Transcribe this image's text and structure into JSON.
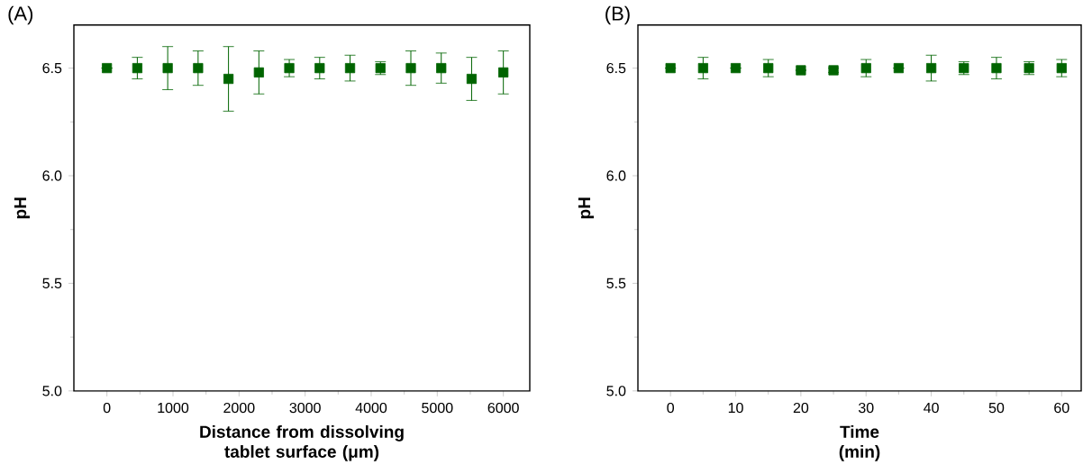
{
  "chart_data": [
    {
      "type": "scatter",
      "title": "(A)",
      "xlabel": "Distance from dissolving tablet surface (μm)",
      "ylabel": "pH",
      "x": [
        0,
        460,
        920,
        1380,
        1840,
        2300,
        2760,
        3220,
        3680,
        4140,
        4600,
        5060,
        5520,
        6000
      ],
      "values": [
        6.5,
        6.5,
        6.5,
        6.5,
        6.45,
        6.48,
        6.5,
        6.5,
        6.5,
        6.5,
        6.5,
        6.5,
        6.45,
        6.48
      ],
      "errors": [
        null,
        0.05,
        0.1,
        0.08,
        0.15,
        0.1,
        0.04,
        0.05,
        0.06,
        0.03,
        0.08,
        0.07,
        0.1,
        0.1
      ],
      "color": "#006400",
      "marker": "square",
      "xlim": [
        -500,
        6400
      ],
      "xticks": [
        0,
        1000,
        2000,
        3000,
        4000,
        5000,
        6000
      ],
      "ylim": [
        5.0,
        6.7
      ],
      "yticks": [
        {
          "value": 5.0,
          "label": "5.0"
        },
        {
          "value": 5.5,
          "label": "5.5"
        },
        {
          "value": 6.0,
          "label": "6.0"
        },
        {
          "value": 6.5,
          "label": "6.5"
        }
      ]
    },
    {
      "type": "scatter",
      "title": "(B)",
      "xlabel": "Time (min)",
      "ylabel": "pH",
      "x": [
        0,
        5,
        10,
        15,
        20,
        25,
        30,
        35,
        40,
        45,
        50,
        55,
        60
      ],
      "values": [
        6.5,
        6.5,
        6.5,
        6.5,
        6.49,
        6.49,
        6.5,
        6.5,
        6.5,
        6.5,
        6.5,
        6.5,
        6.5
      ],
      "errors": [
        null,
        0.05,
        null,
        0.04,
        null,
        0.01,
        0.04,
        null,
        0.06,
        0.03,
        0.05,
        0.03,
        0.04
      ],
      "color": "#006400",
      "marker": "square",
      "xlim": [
        -5,
        63
      ],
      "xticks": [
        0,
        10,
        20,
        30,
        40,
        50,
        60
      ],
      "ylim": [
        5.0,
        6.7
      ],
      "yticks": [
        {
          "value": 5.0,
          "label": "5.0"
        },
        {
          "value": 5.5,
          "label": "5.5"
        },
        {
          "value": 6.0,
          "label": "6.0"
        },
        {
          "value": 6.5,
          "label": "6.5"
        }
      ]
    }
  ]
}
